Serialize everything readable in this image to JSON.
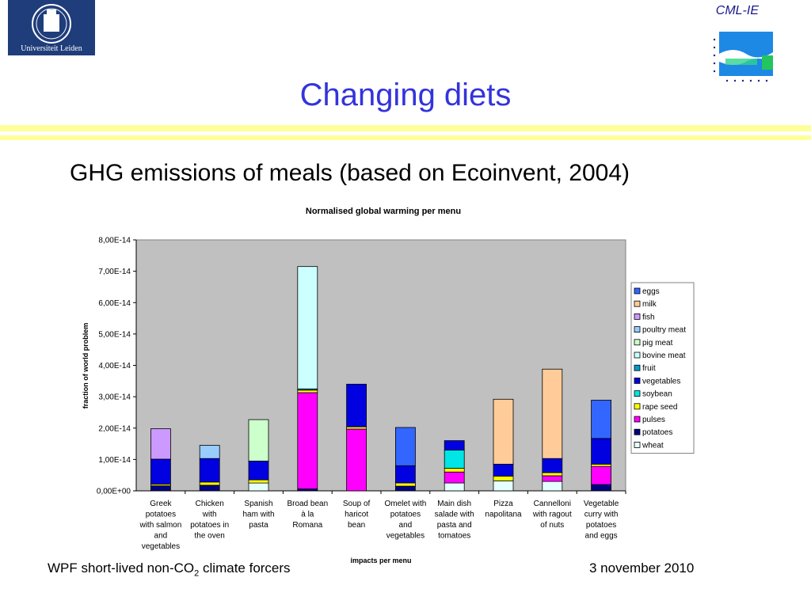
{
  "header": {
    "logo_text": "Universiteit Leiden",
    "org_label": "CML-IE"
  },
  "slide": {
    "title": "Changing diets",
    "subtitle": "GHG emissions of meals (based on Ecoinvent, 2004)"
  },
  "footer": {
    "left_main": "WPF short-lived non-CO",
    "left_sub": "2",
    "left_after": " climate forcers",
    "right": "3 november 2010"
  },
  "colors": {
    "title": "#3333dd",
    "band": "#ffff99",
    "plot_bg": "#c0c0c0"
  },
  "chart_data": {
    "type": "bar",
    "stacked": true,
    "title": "Normalised global warming per menu",
    "xlabel": "impacts per menu",
    "ylabel": "fraction of world problem",
    "ylim": [
      0,
      8e-14
    ],
    "yticks": [
      "0,00E+00",
      "1,00E-14",
      "2,00E-14",
      "3,00E-14",
      "4,00E-14",
      "5,00E-14",
      "6,00E-14",
      "7,00E-14",
      "8,00E-14"
    ],
    "grid": false,
    "legend_position": "right",
    "categories": [
      [
        "Greek",
        "potatoes",
        "with salmon",
        "and",
        "vegetables"
      ],
      [
        "Chicken",
        "with",
        "potatoes in",
        "the oven"
      ],
      [
        "Spanish",
        "ham with",
        "pasta"
      ],
      [
        "Broad bean",
        "à la",
        "Romana"
      ],
      [
        "Soup of",
        "haricot",
        "bean"
      ],
      [
        "Omelet with",
        "potatoes",
        "and",
        "vegetables"
      ],
      [
        "Main dish",
        "salade with",
        "pasta and",
        "tomatoes"
      ],
      [
        "Pizza",
        "napolitana"
      ],
      [
        "Cannelloni",
        "with ragout",
        "of nuts"
      ],
      [
        "Vegetable",
        "curry with",
        "potatoes",
        "and eggs"
      ]
    ],
    "series": [
      {
        "name": "wheat",
        "color": "#e6ffff",
        "values": [
          0,
          0,
          2.5e-15,
          0,
          0,
          0,
          2.5e-15,
          3.2e-15,
          3e-15,
          0
        ]
      },
      {
        "name": "potatoes",
        "color": "#000080",
        "values": [
          1.6e-15,
          1.8e-15,
          0,
          6e-16,
          0,
          1.5e-15,
          0,
          0,
          0,
          2e-15
        ]
      },
      {
        "name": "pulses",
        "color": "#ff00ff",
        "values": [
          0,
          0,
          0,
          3.07e-14,
          1.97e-14,
          0,
          3.5e-15,
          0,
          1.8e-15,
          5.8e-15
        ]
      },
      {
        "name": "rape seed",
        "color": "#ffff00",
        "values": [
          5e-16,
          1e-15,
          1e-15,
          8e-16,
          7e-16,
          1e-15,
          1.2e-15,
          1.5e-15,
          1e-15,
          7e-16
        ]
      },
      {
        "name": "soybean",
        "color": "#00e5e5",
        "values": [
          0,
          0,
          0,
          0,
          0,
          0,
          5.8e-15,
          0,
          0,
          0
        ]
      },
      {
        "name": "vegetables",
        "color": "#0000e0",
        "values": [
          8e-15,
          7.5e-15,
          6e-15,
          0,
          1.36e-14,
          5.5e-15,
          3e-15,
          3.8e-15,
          4.5e-15,
          8.2e-15
        ]
      },
      {
        "name": "fruit",
        "color": "#0099cc",
        "values": [
          0,
          0,
          0,
          4e-16,
          0,
          0,
          0,
          0,
          0,
          0
        ]
      },
      {
        "name": "bovine meat",
        "color": "#ccffff",
        "values": [
          0,
          0,
          0,
          3.9e-14,
          0,
          0,
          0,
          0,
          0,
          0
        ]
      },
      {
        "name": "pig meat",
        "color": "#ccffcc",
        "values": [
          0,
          0,
          1.32e-14,
          0,
          0,
          0,
          0,
          0,
          0,
          0
        ]
      },
      {
        "name": "poultry meat",
        "color": "#99ccff",
        "values": [
          0,
          4.2e-15,
          0,
          0,
          0,
          0,
          0,
          0,
          0,
          0
        ]
      },
      {
        "name": "fish",
        "color": "#cc99ff",
        "values": [
          9.7e-15,
          0,
          0,
          0,
          0,
          0,
          0,
          0,
          0,
          0
        ]
      },
      {
        "name": "milk",
        "color": "#ffcc99",
        "values": [
          0,
          0,
          0,
          0,
          0,
          0,
          0,
          2.07e-14,
          2.85e-14,
          0
        ]
      },
      {
        "name": "eggs",
        "color": "#3366ff",
        "values": [
          0,
          0,
          0,
          0,
          0,
          1.22e-14,
          0,
          0,
          0,
          1.22e-14
        ]
      }
    ]
  }
}
